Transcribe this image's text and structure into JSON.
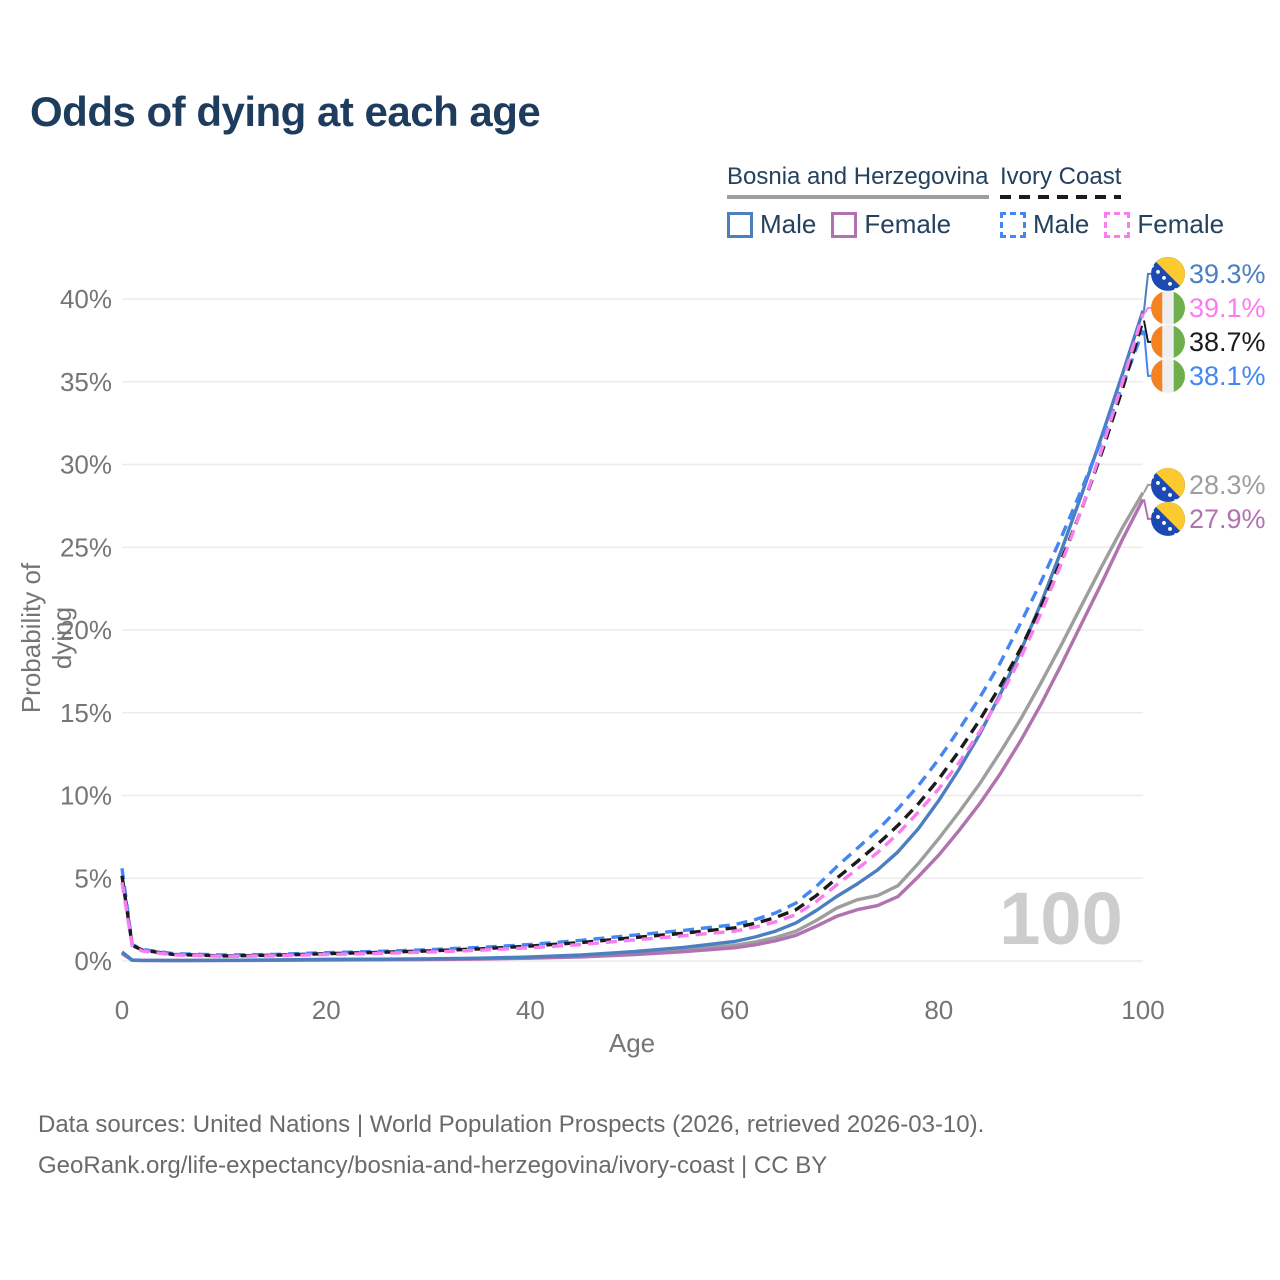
{
  "title": "Odds of dying at each age",
  "watermark": "100",
  "legend": {
    "groups": [
      {
        "label": "Bosnia and Herzegovina",
        "line_style": "solid",
        "line_color": "#9e9e9e",
        "items": [
          {
            "label": "Male",
            "color": "#4c7fc0",
            "dashed": false
          },
          {
            "label": "Female",
            "color": "#b073b0",
            "dashed": false
          }
        ]
      },
      {
        "label": "Ivory Coast",
        "line_style": "dashed",
        "line_color": "#1b1b1b",
        "items": [
          {
            "label": "Male",
            "color": "#4487f2",
            "dashed": true
          },
          {
            "label": "Female",
            "color": "#f97df0",
            "dashed": true
          }
        ]
      }
    ]
  },
  "axes": {
    "y_title": "Probability of dying",
    "x_title": "Age",
    "y_ticks": [
      "0%",
      "5%",
      "10%",
      "15%",
      "20%",
      "25%",
      "30%",
      "35%",
      "40%"
    ],
    "x_ticks": [
      "0",
      "20",
      "40",
      "60",
      "80",
      "100"
    ]
  },
  "footer": {
    "line1": "Data sources: United Nations | World Population Prospects (2026, retrieved 2026-03-10).",
    "line2": "GeoRank.org/life-expectancy/bosnia-and-herzegovina/ivory-coast | CC BY"
  },
  "colors": {
    "title": "#1d3c5e",
    "legend_text": "#24415e",
    "axis_text": "#757575",
    "grid": "#ececec",
    "watermark": "#cdcdcd",
    "footer_text": "#6a6a6a"
  },
  "chart_data": {
    "type": "line",
    "title": "Odds of dying at each age",
    "xlabel": "Age",
    "ylabel": "Probability of dying",
    "x_range": [
      0,
      100
    ],
    "y_range_percent": [
      0,
      40
    ],
    "grid": "horizontal-only",
    "legend_position": "top-right",
    "annotation_age_cursor": "100",
    "ages": [
      0,
      1,
      2,
      5,
      10,
      15,
      20,
      25,
      30,
      35,
      40,
      45,
      50,
      55,
      60,
      62,
      64,
      66,
      68,
      70,
      72,
      74,
      76,
      78,
      80,
      82,
      84,
      86,
      88,
      90,
      92,
      94,
      96,
      98,
      100
    ],
    "series": [
      {
        "name": "Bosnia and Herzegovina Overall",
        "country": "Bosnia and Herzegovina",
        "sex": "both",
        "style": "solid",
        "color": "#9e9e9e",
        "flag": "bosnia",
        "end_value": 28.3,
        "end_label": "28.3%",
        "values": [
          0.5,
          0.05,
          0.04,
          0.03,
          0.04,
          0.055,
          0.08,
          0.09,
          0.11,
          0.14,
          0.2,
          0.3,
          0.46,
          0.66,
          0.95,
          1.15,
          1.42,
          1.8,
          2.45,
          3.2,
          3.7,
          3.95,
          4.55,
          5.9,
          7.4,
          9.0,
          10.7,
          12.6,
          14.6,
          16.8,
          19.1,
          21.5,
          23.9,
          26.2,
          28.3
        ]
      },
      {
        "name": "Bosnia and Herzegovina Female",
        "country": "Bosnia and Herzegovina",
        "sex": "female",
        "style": "solid",
        "color": "#b073b0",
        "flag": "bosnia",
        "end_value": 27.9,
        "end_label": "27.9%",
        "values": [
          0.45,
          0.04,
          0.03,
          0.025,
          0.03,
          0.045,
          0.06,
          0.07,
          0.09,
          0.12,
          0.17,
          0.25,
          0.38,
          0.56,
          0.8,
          0.98,
          1.22,
          1.55,
          2.1,
          2.7,
          3.1,
          3.35,
          3.9,
          5.1,
          6.4,
          7.9,
          9.5,
          11.3,
          13.3,
          15.5,
          17.9,
          20.4,
          22.9,
          25.5,
          27.9
        ]
      },
      {
        "name": "Bosnia and Herzegovina Male",
        "country": "Bosnia and Herzegovina",
        "sex": "male",
        "style": "solid",
        "color": "#4c7fc0",
        "flag": "bosnia",
        "end_value": 39.3,
        "end_label": "39.3%",
        "values": [
          0.55,
          0.06,
          0.045,
          0.035,
          0.045,
          0.065,
          0.1,
          0.11,
          0.13,
          0.17,
          0.24,
          0.36,
          0.56,
          0.82,
          1.18,
          1.45,
          1.8,
          2.3,
          3.05,
          3.9,
          4.65,
          5.5,
          6.6,
          8.0,
          9.7,
          11.6,
          13.7,
          16.1,
          18.7,
          21.6,
          24.8,
          28.2,
          31.8,
          35.5,
          39.3
        ]
      },
      {
        "name": "Ivory Coast Male",
        "country": "Ivory Coast",
        "sex": "male",
        "style": "dashed",
        "color": "#4487f2",
        "flag": "ivory-coast",
        "end_value": 38.1,
        "end_label": "38.1%",
        "values": [
          5.6,
          1.0,
          0.7,
          0.45,
          0.36,
          0.4,
          0.5,
          0.58,
          0.68,
          0.82,
          1.0,
          1.25,
          1.55,
          1.85,
          2.2,
          2.5,
          2.9,
          3.5,
          4.5,
          5.7,
          6.8,
          7.9,
          9.2,
          10.6,
          12.2,
          14.0,
          15.9,
          18.0,
          20.4,
          22.9,
          25.6,
          28.5,
          31.6,
          34.8,
          38.1
        ]
      },
      {
        "name": "Ivory Coast Overall",
        "country": "Ivory Coast",
        "sex": "both",
        "style": "dashed",
        "color": "#1b1b1b",
        "flag": "ivory-coast",
        "end_value": 38.7,
        "end_label": "38.7%",
        "values": [
          5.15,
          0.95,
          0.65,
          0.4,
          0.31,
          0.35,
          0.44,
          0.52,
          0.61,
          0.73,
          0.9,
          1.12,
          1.4,
          1.68,
          2.0,
          2.28,
          2.62,
          3.1,
          3.95,
          5.0,
          6.0,
          7.05,
          8.2,
          9.5,
          11.0,
          12.7,
          14.55,
          16.6,
          18.85,
          21.4,
          24.2,
          27.3,
          30.8,
          34.6,
          38.7
        ]
      },
      {
        "name": "Ivory Coast Female",
        "country": "Ivory Coast",
        "sex": "female",
        "style": "dashed",
        "color": "#f97df0",
        "flag": "ivory-coast",
        "end_value": 39.1,
        "end_label": "39.1%",
        "values": [
          4.75,
          0.9,
          0.6,
          0.37,
          0.28,
          0.31,
          0.39,
          0.46,
          0.54,
          0.65,
          0.8,
          1.0,
          1.26,
          1.52,
          1.8,
          2.05,
          2.36,
          2.8,
          3.6,
          4.6,
          5.55,
          6.55,
          7.7,
          9.0,
          10.4,
          12.0,
          13.85,
          15.95,
          18.3,
          21.0,
          24.0,
          27.3,
          31.0,
          35.0,
          39.1
        ]
      }
    ]
  }
}
